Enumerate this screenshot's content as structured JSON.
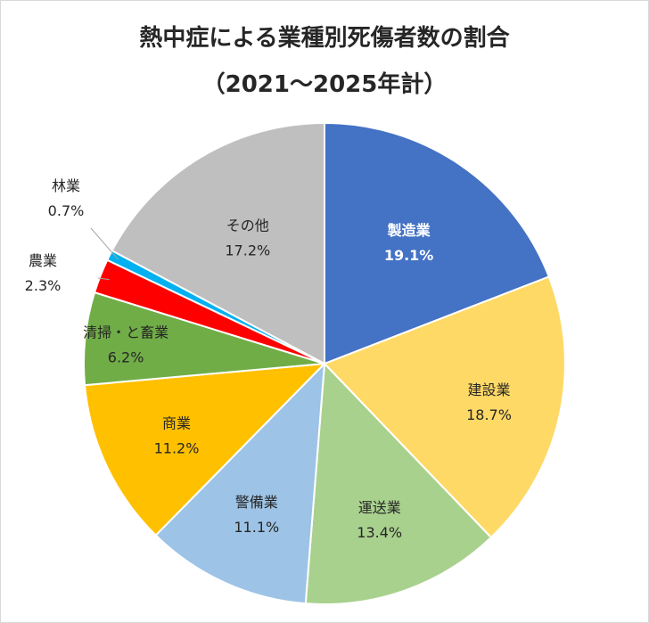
{
  "chart_data": {
    "type": "pie",
    "title": "熱中症による業種別死傷者数の割合",
    "subtitle": "（2021～2025年計）",
    "categories": [
      "製造業",
      "建設業",
      "運送業",
      "警備業",
      "商業",
      "清掃・と畜業",
      "農業",
      "林業",
      "その他"
    ],
    "values": [
      19.1,
      18.7,
      13.4,
      11.1,
      11.2,
      6.2,
      2.3,
      0.7,
      17.2
    ],
    "value_labels": [
      "19.1%",
      "18.7%",
      "13.4%",
      "11.1%",
      "11.2%",
      "6.2%",
      "2.3%",
      "0.7%",
      "17.2%"
    ],
    "colors": [
      "#4472C4",
      "#FFD966",
      "#A9D18E",
      "#9DC3E6",
      "#FFC000",
      "#70AD47",
      "#FF0000",
      "#00B0F0",
      "#BFBFBF"
    ],
    "start_angle": "12 o'clock",
    "direction": "clockwise",
    "legend": "none"
  }
}
